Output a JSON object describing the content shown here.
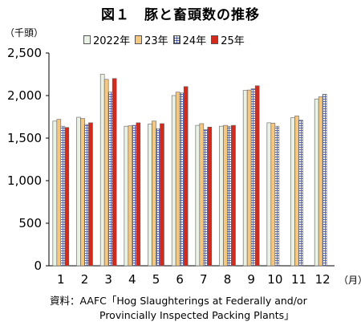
{
  "page": {
    "title": "図１　豚と畜頭数の推移",
    "unit_label": "（千頭）",
    "x_unit_label": "（月）",
    "source_line1": "資料：AAFC「Hog Slaughterings at Federally and/or",
    "source_line2": "Provincially Inspected Packing Plants」"
  },
  "chart_data": {
    "type": "bar",
    "categories": [
      "1",
      "2",
      "3",
      "4",
      "5",
      "6",
      "7",
      "8",
      "9",
      "10",
      "11",
      "12"
    ],
    "series": [
      {
        "name": "2022年",
        "color": "#e9f2e4",
        "pattern": "none",
        "values": [
          1700,
          1745,
          2250,
          1640,
          1665,
          2000,
          1650,
          1640,
          2060,
          1680,
          1740,
          1960
        ]
      },
      {
        "name": "23年",
        "color": "#f6c77e",
        "pattern": "none",
        "values": [
          1720,
          1730,
          2190,
          1645,
          1700,
          2040,
          1670,
          1650,
          2065,
          1675,
          1760,
          1985
        ]
      },
      {
        "name": "24年",
        "color": "#8ea0d6",
        "pattern": "grid",
        "values": [
          1640,
          1660,
          2040,
          1650,
          1610,
          2030,
          1600,
          1640,
          2080,
          1640,
          1710,
          2015
        ]
      },
      {
        "name": "25年",
        "color": "#d42a1c",
        "pattern": "none",
        "values": [
          1625,
          1680,
          2200,
          1680,
          1670,
          2105,
          1630,
          1650,
          2115,
          null,
          null,
          null
        ]
      }
    ],
    "y_ticks": [
      "0",
      "500",
      "1,000",
      "1,500",
      "2,000",
      "2,500"
    ],
    "ylim": [
      0,
      2500
    ],
    "grid": false,
    "legend_position": "top"
  }
}
